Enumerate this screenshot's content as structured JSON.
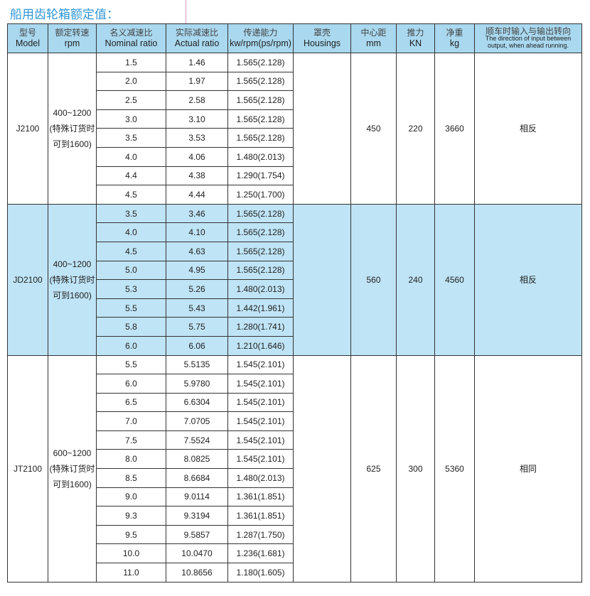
{
  "title": "船用齿轮箱额定值：",
  "headers": [
    {
      "cn": "型号",
      "en": "Model"
    },
    {
      "cn": "额定转速",
      "en": "rpm"
    },
    {
      "cn": "名义减速比",
      "en": "Nominal ratio"
    },
    {
      "cn": "实际减速比",
      "en": "Actual ratio"
    },
    {
      "cn": "传递能力",
      "en": "kw/rpm(ps/rpm)"
    },
    {
      "cn": "罩壳",
      "en": "Housings"
    },
    {
      "cn": "中心距",
      "en": "mm"
    },
    {
      "cn": "推力",
      "en": "KN"
    },
    {
      "cn": "净重",
      "en": "kg"
    },
    {
      "cn": "顺车时输入与输出转向",
      "en": "The direction of input between output, when ahead running."
    }
  ],
  "groups": [
    {
      "model": "J2100",
      "rpm": [
        "400~1200",
        "(特殊订货时",
        "可到1600)"
      ],
      "center": "450",
      "thrust": "220",
      "weight": "3660",
      "direction": "相反",
      "rows": [
        [
          "1.5",
          "1.46",
          "1.565(2.128)"
        ],
        [
          "2.0",
          "1.97",
          "1.565(2.128)"
        ],
        [
          "2.5",
          "2.58",
          "1.565(2.128)"
        ],
        [
          "3.0",
          "3.10",
          "1.565(2.128)"
        ],
        [
          "3.5",
          "3.53",
          "1.565(2.128)"
        ],
        [
          "4.0",
          "4.06",
          "1.480(2.013)"
        ],
        [
          "4.4",
          "4.38",
          "1.290(1.754)"
        ],
        [
          "4.5",
          "4.44",
          "1.250(1.700)"
        ]
      ]
    },
    {
      "model": "JD2100",
      "rpm": [
        "400~1200",
        "(特殊订货时",
        "可到1600)"
      ],
      "center": "560",
      "thrust": "240",
      "weight": "4560",
      "direction": "相反",
      "rows": [
        [
          "3.5",
          "3.46",
          "1.565(2.128)"
        ],
        [
          "4.0",
          "4.10",
          "1.565(2.128)"
        ],
        [
          "4.5",
          "4.63",
          "1.565(2.128)"
        ],
        [
          "5.0",
          "4.95",
          "1.565(2.128)"
        ],
        [
          "5.3",
          "5.26",
          "1.480(2.013)"
        ],
        [
          "5.5",
          "5.43",
          "1.442(1.961)"
        ],
        [
          "5.8",
          "5.75",
          "1.280(1.741)"
        ],
        [
          "6.0",
          "6.06",
          "1.210(1.646)"
        ]
      ]
    },
    {
      "model": "JT2100",
      "rpm": [
        "600~1200",
        "(特殊订货时",
        "可到1600)"
      ],
      "center": "625",
      "thrust": "300",
      "weight": "5360",
      "direction": "相同",
      "rows": [
        [
          "5.5",
          "5.5135",
          "1.545(2.101)"
        ],
        [
          "6.0",
          "5.9780",
          "1.545(2.101)"
        ],
        [
          "6.5",
          "6.6304",
          "1.545(2.101)"
        ],
        [
          "7.0",
          "7.0705",
          "1.545(2.101)"
        ],
        [
          "7.5",
          "7.5524",
          "1.545(2.101)"
        ],
        [
          "8.0",
          "8.0825",
          "1.545(2.101)"
        ],
        [
          "8.5",
          "8.6684",
          "1.480(2.013)"
        ],
        [
          "9.0",
          "9.0114",
          "1.361(1.851)"
        ],
        [
          "9.3",
          "9.3194",
          "1.361(1.851)"
        ],
        [
          "9.5",
          "9.5857",
          "1.287(1.750)"
        ],
        [
          "10.0",
          "10.0470",
          "1.236(1.681)"
        ],
        [
          "11.0",
          "10.8656",
          "1.180(1.605)"
        ]
      ]
    }
  ]
}
